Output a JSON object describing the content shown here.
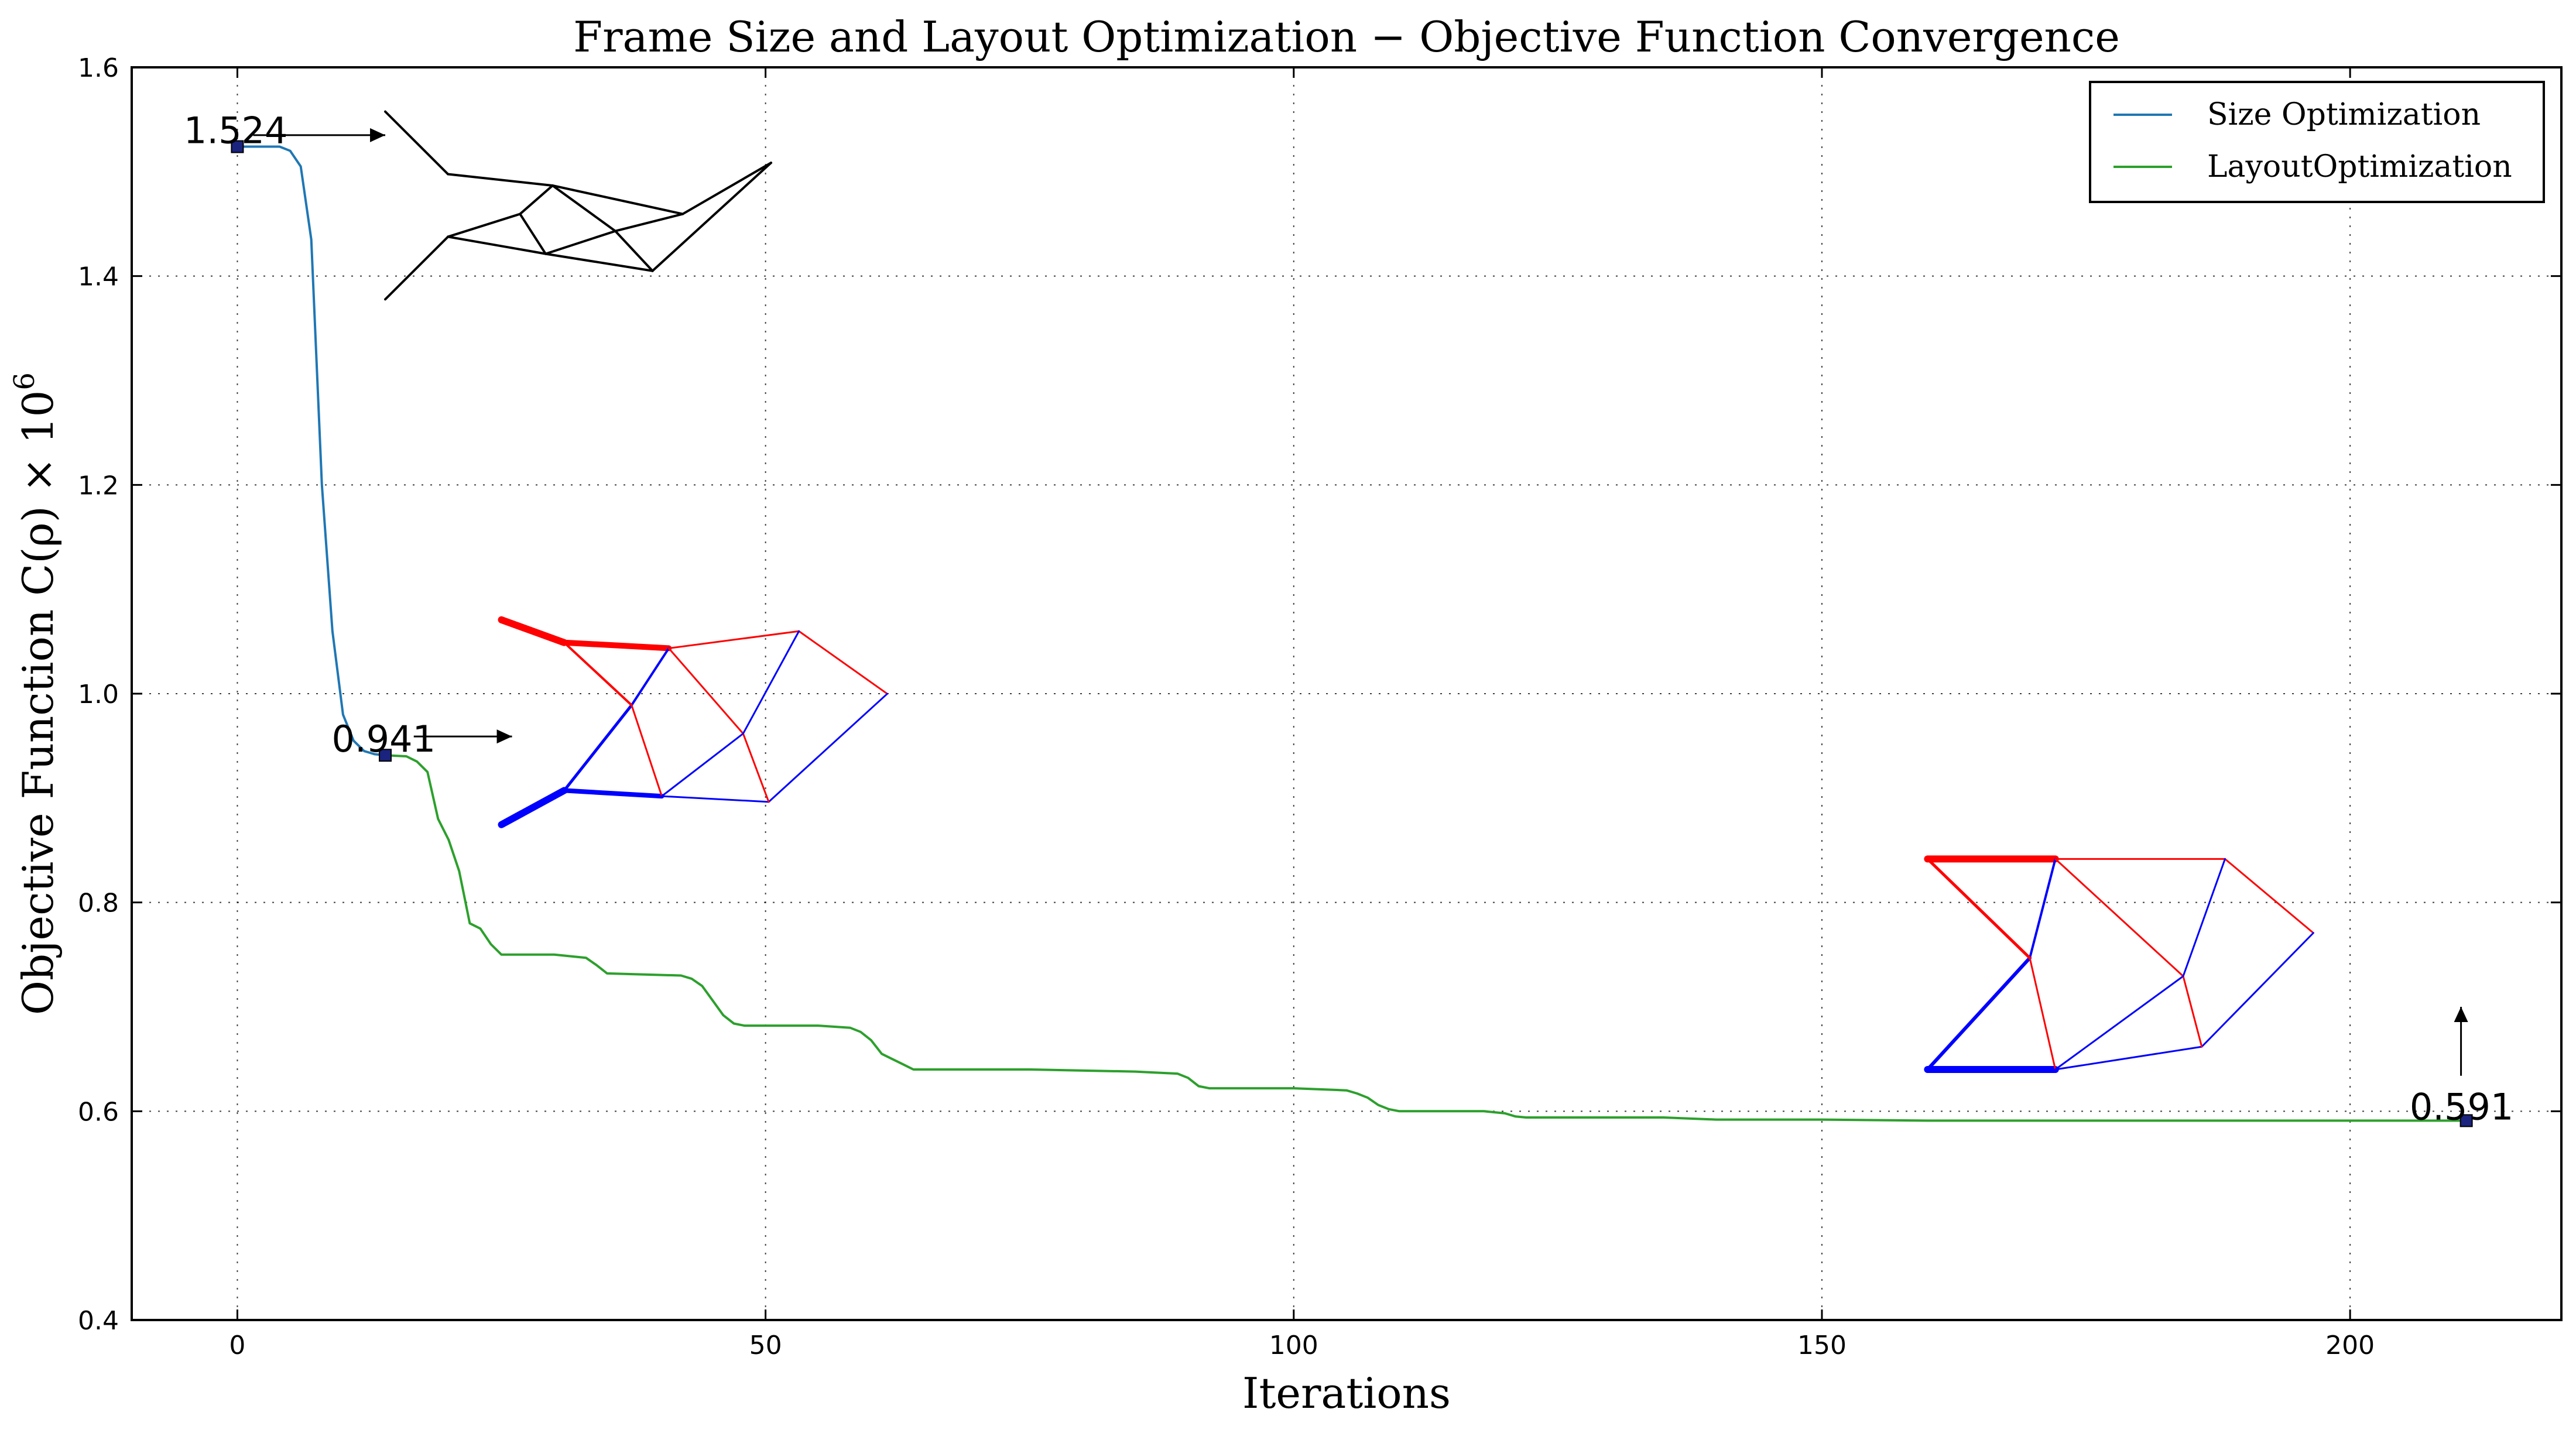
{
  "chart_data": {
    "type": "line",
    "title": "Frame Size and Layout Optimization − Objective Function Convergence",
    "xlabel": "Iterations",
    "ylabel_main": "Objective Function C(ρ) × 10",
    "ylabel_exp": "6",
    "xlim": [
      -10,
      220
    ],
    "ylim": [
      0.4,
      1.6
    ],
    "xticks": [
      0,
      50,
      100,
      150,
      200
    ],
    "yticks": [
      0.4,
      0.6,
      0.8,
      1.0,
      1.2,
      1.4,
      1.6
    ],
    "xtick_labels": [
      "0",
      "50",
      "100",
      "150",
      "200"
    ],
    "ytick_labels": [
      "0.4",
      "0.6",
      "0.8",
      "1.0",
      "1.2",
      "1.4",
      "1.6"
    ],
    "grid": true,
    "legend_position": "top-right",
    "series": [
      {
        "name": "Size Optimization",
        "color": "#1f77b4",
        "x": [
          0,
          4,
          5,
          6,
          7,
          8,
          9,
          10,
          11,
          12,
          13,
          14
        ],
        "y": [
          1.524,
          1.524,
          1.52,
          1.505,
          1.435,
          1.2,
          1.06,
          0.98,
          0.955,
          0.945,
          0.942,
          0.941
        ]
      },
      {
        "name": "LayoutOptimization",
        "color": "#2ca02c",
        "x": [
          14,
          16,
          17,
          18,
          19,
          20,
          21,
          22,
          23,
          24,
          25,
          30,
          33,
          34,
          35,
          42,
          43,
          44,
          45,
          46,
          47,
          48,
          55,
          58,
          59,
          60,
          61,
          62,
          63,
          64,
          75,
          85,
          89,
          90,
          91,
          92,
          93,
          100,
          105,
          106,
          107,
          108,
          109,
          110,
          111,
          118,
          120,
          121,
          122,
          135,
          140,
          150,
          160,
          170,
          180,
          190,
          200,
          211
        ],
        "y": [
          0.941,
          0.94,
          0.935,
          0.925,
          0.88,
          0.86,
          0.83,
          0.78,
          0.775,
          0.76,
          0.75,
          0.75,
          0.747,
          0.74,
          0.732,
          0.73,
          0.727,
          0.72,
          0.706,
          0.692,
          0.684,
          0.682,
          0.682,
          0.68,
          0.676,
          0.668,
          0.655,
          0.65,
          0.645,
          0.64,
          0.64,
          0.638,
          0.636,
          0.632,
          0.624,
          0.622,
          0.622,
          0.622,
          0.62,
          0.617,
          0.613,
          0.606,
          0.602,
          0.6,
          0.6,
          0.6,
          0.598,
          0.595,
          0.594,
          0.594,
          0.592,
          0.592,
          0.591,
          0.591,
          0.591,
          0.591,
          0.591,
          0.591
        ]
      }
    ],
    "markers": [
      {
        "x": 0,
        "y": 1.524,
        "label": "1.524"
      },
      {
        "x": 14,
        "y": 0.941,
        "label": "0.941"
      },
      {
        "x": 211,
        "y": 0.591,
        "label": "0.591"
      }
    ],
    "insets": [
      {
        "name": "initial-frame",
        "origin_data": [
          14,
          1.405
        ],
        "scale_data": [
          22,
          0.109
        ],
        "edges": [
          {
            "a": [
              0,
              1.4
            ],
            "b": [
              2.7,
              0.85
            ],
            "c": "#000000",
            "w": 4
          },
          {
            "a": [
              2.7,
              0.85
            ],
            "b": [
              7.2,
              0.75
            ],
            "c": "#000000",
            "w": 4
          },
          {
            "a": [
              7.2,
              0.75
            ],
            "b": [
              12.8,
              0.5
            ],
            "c": "#000000",
            "w": 4
          },
          {
            "a": [
              0,
              -0.25
            ],
            "b": [
              2.7,
              0.3
            ],
            "c": "#000000",
            "w": 4
          },
          {
            "a": [
              2.7,
              0.3
            ],
            "b": [
              6.9,
              0.15
            ],
            "c": "#000000",
            "w": 4
          },
          {
            "a": [
              6.9,
              0.15
            ],
            "b": [
              11.5,
              0.0
            ],
            "c": "#000000",
            "w": 4
          },
          {
            "a": [
              11.5,
              0.0
            ],
            "b": [
              16.6,
              0.95
            ],
            "c": "#000000",
            "w": 4
          },
          {
            "a": [
              12.8,
              0.5
            ],
            "b": [
              16.6,
              0.95
            ],
            "c": "#000000",
            "w": 4
          },
          {
            "a": [
              2.7,
              0.3
            ],
            "b": [
              5.8,
              0.5
            ],
            "c": "#000000",
            "w": 4
          },
          {
            "a": [
              5.8,
              0.5
            ],
            "b": [
              7.2,
              0.75
            ],
            "c": "#000000",
            "w": 4
          },
          {
            "a": [
              5.8,
              0.5
            ],
            "b": [
              6.9,
              0.15
            ],
            "c": "#000000",
            "w": 4
          },
          {
            "a": [
              7.2,
              0.75
            ],
            "b": [
              9.9,
              0.35
            ],
            "c": "#000000",
            "w": 4
          },
          {
            "a": [
              6.9,
              0.15
            ],
            "b": [
              9.9,
              0.35
            ],
            "c": "#000000",
            "w": 4
          },
          {
            "a": [
              9.9,
              0.35
            ],
            "b": [
              11.5,
              0.0
            ],
            "c": "#000000",
            "w": 4
          },
          {
            "a": [
              9.9,
              0.35
            ],
            "b": [
              12.8,
              0.5
            ],
            "c": "#000000",
            "w": 4
          }
        ]
      },
      {
        "name": "size-optimized-frame",
        "origin_data": [
          25,
          0.88
        ],
        "scale_data": [
          22,
          0.109
        ],
        "edges": [
          {
            "a": [
              0,
              1.75
            ],
            "b": [
              2.7,
              1.55
            ],
            "c": "#ff0000",
            "w": 12
          },
          {
            "a": [
              2.7,
              1.55
            ],
            "b": [
              7.2,
              1.5
            ],
            "c": "#ff0000",
            "w": 10
          },
          {
            "a": [
              7.2,
              1.5
            ],
            "b": [
              12.8,
              1.65
            ],
            "c": "#ff0000",
            "w": 3
          },
          {
            "a": [
              12.8,
              1.65
            ],
            "b": [
              16.6,
              1.1
            ],
            "c": "#ff0000",
            "w": 3
          },
          {
            "a": [
              0,
              -0.05
            ],
            "b": [
              2.7,
              0.25
            ],
            "c": "#0000ff",
            "w": 12
          },
          {
            "a": [
              2.7,
              0.25
            ],
            "b": [
              6.9,
              0.2
            ],
            "c": "#0000ff",
            "w": 8
          },
          {
            "a": [
              6.9,
              0.2
            ],
            "b": [
              11.5,
              0.15
            ],
            "c": "#0000ff",
            "w": 3
          },
          {
            "a": [
              11.5,
              0.15
            ],
            "b": [
              16.6,
              1.1
            ],
            "c": "#0000ff",
            "w": 3
          },
          {
            "a": [
              2.7,
              0.25
            ],
            "b": [
              5.6,
              1.0
            ],
            "c": "#0000ff",
            "w": 5
          },
          {
            "a": [
              5.6,
              1.0
            ],
            "b": [
              7.2,
              1.5
            ],
            "c": "#0000ff",
            "w": 4
          },
          {
            "a": [
              2.7,
              1.55
            ],
            "b": [
              5.6,
              1.0
            ],
            "c": "#ff0000",
            "w": 4
          },
          {
            "a": [
              5.6,
              1.0
            ],
            "b": [
              6.9,
              0.2
            ],
            "c": "#ff0000",
            "w": 3
          },
          {
            "a": [
              7.2,
              1.5
            ],
            "b": [
              10.4,
              0.75
            ],
            "c": "#ff0000",
            "w": 3
          },
          {
            "a": [
              6.9,
              0.2
            ],
            "b": [
              10.4,
              0.75
            ],
            "c": "#0000ff",
            "w": 3
          },
          {
            "a": [
              10.4,
              0.75
            ],
            "b": [
              11.5,
              0.15
            ],
            "c": "#ff0000",
            "w": 3
          },
          {
            "a": [
              10.4,
              0.75
            ],
            "b": [
              12.8,
              1.65
            ],
            "c": "#0000ff",
            "w": 3
          }
        ]
      },
      {
        "name": "layout-optimized-frame",
        "origin_data": [
          160,
          0.64
        ],
        "scale_data": [
          22,
          0.109
        ],
        "edges": [
          {
            "a": [
              0,
              1.85
            ],
            "b": [
              5.5,
              1.85
            ],
            "c": "#ff0000",
            "w": 12
          },
          {
            "a": [
              5.5,
              1.85
            ],
            "b": [
              12.8,
              1.85
            ],
            "c": "#ff0000",
            "w": 3
          },
          {
            "a": [
              12.8,
              1.85
            ],
            "b": [
              16.6,
              1.2
            ],
            "c": "#ff0000",
            "w": 3
          },
          {
            "a": [
              0,
              0.0
            ],
            "b": [
              5.5,
              0.0
            ],
            "c": "#0000ff",
            "w": 12
          },
          {
            "a": [
              5.5,
              0.0
            ],
            "b": [
              11.8,
              0.2
            ],
            "c": "#0000ff",
            "w": 3
          },
          {
            "a": [
              11.8,
              0.2
            ],
            "b": [
              16.6,
              1.2
            ],
            "c": "#0000ff",
            "w": 3
          },
          {
            "a": [
              0,
              0.0
            ],
            "b": [
              4.4,
              0.98
            ],
            "c": "#0000ff",
            "w": 6
          },
          {
            "a": [
              4.4,
              0.98
            ],
            "b": [
              5.5,
              1.85
            ],
            "c": "#0000ff",
            "w": 4
          },
          {
            "a": [
              0,
              1.85
            ],
            "b": [
              4.4,
              0.98
            ],
            "c": "#ff0000",
            "w": 5
          },
          {
            "a": [
              4.4,
              0.98
            ],
            "b": [
              5.5,
              0.0
            ],
            "c": "#ff0000",
            "w": 3
          },
          {
            "a": [
              5.5,
              1.85
            ],
            "b": [
              11.0,
              0.82
            ],
            "c": "#ff0000",
            "w": 3
          },
          {
            "a": [
              5.5,
              0.0
            ],
            "b": [
              11.0,
              0.82
            ],
            "c": "#0000ff",
            "w": 3
          },
          {
            "a": [
              11.0,
              0.82
            ],
            "b": [
              11.8,
              0.2
            ],
            "c": "#ff0000",
            "w": 3
          },
          {
            "a": [
              11.0,
              0.82
            ],
            "b": [
              12.8,
              1.85
            ],
            "c": "#0000ff",
            "w": 3
          }
        ]
      }
    ]
  }
}
